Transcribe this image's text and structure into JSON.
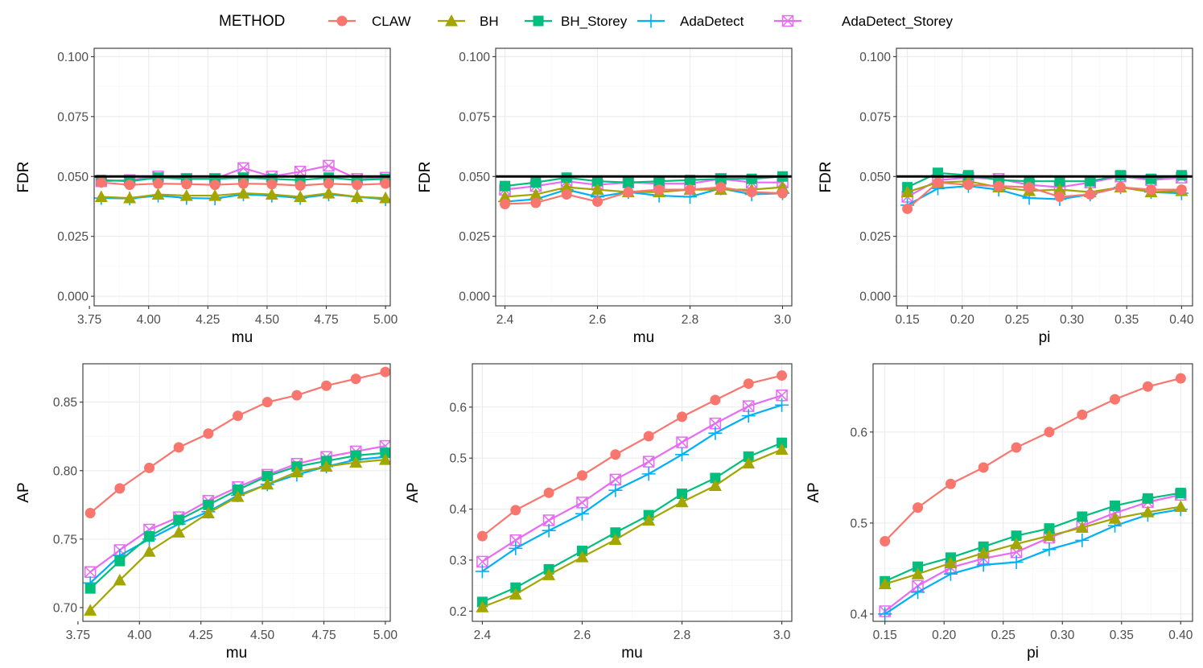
{
  "legend": {
    "title": "METHOD",
    "items": [
      {
        "name": "CLAW",
        "color": "#F8766D",
        "shape": "circle"
      },
      {
        "name": "BH",
        "color": "#A3A500",
        "shape": "triangle"
      },
      {
        "name": "BH_Storey",
        "color": "#00BF7D",
        "shape": "square"
      },
      {
        "name": "AdaDetect",
        "color": "#00B0F6",
        "shape": "plus"
      },
      {
        "name": "AdaDetect_Storey",
        "color": "#E76BF3",
        "shape": "boxx"
      }
    ]
  },
  "chart_data": [
    {
      "type": "line",
      "panel": "top-left",
      "xlabel": "mu",
      "ylabel": "FDR",
      "xlim": [
        3.77,
        5.02
      ],
      "ylim": [
        -0.004,
        0.1035
      ],
      "xticks": [
        3.75,
        4.0,
        4.25,
        4.5,
        4.75,
        5.0
      ],
      "xtick_labels": [
        "3.75",
        "4.00",
        "4.25",
        "4.50",
        "4.75",
        "5.00"
      ],
      "yticks": [
        0,
        0.025,
        0.05,
        0.075,
        0.1
      ],
      "ytick_labels": [
        "0.000",
        "0.025",
        "0.050",
        "0.075",
        "0.100"
      ],
      "hline": 0.05,
      "x": [
        3.8,
        3.92,
        4.04,
        4.16,
        4.28,
        4.4,
        4.52,
        4.64,
        4.76,
        4.88,
        5.0
      ],
      "series": [
        {
          "name": "CLAW",
          "values": [
            0.0475,
            0.0465,
            0.047,
            0.0468,
            0.0465,
            0.047,
            0.0468,
            0.0462,
            0.047,
            0.0465,
            0.047
          ]
        },
        {
          "name": "BH",
          "values": [
            0.0415,
            0.041,
            0.0425,
            0.042,
            0.042,
            0.043,
            0.0425,
            0.0415,
            0.043,
            0.0415,
            0.041
          ]
        },
        {
          "name": "BH_Storey",
          "values": [
            0.0485,
            0.048,
            0.0495,
            0.049,
            0.049,
            0.0495,
            0.049,
            0.0485,
            0.0495,
            0.0485,
            0.049
          ]
        },
        {
          "name": "AdaDetect",
          "values": [
            0.041,
            0.0408,
            0.042,
            0.041,
            0.0408,
            0.0425,
            0.042,
            0.041,
            0.0425,
            0.0415,
            0.0405
          ]
        },
        {
          "name": "AdaDetect_Storey",
          "values": [
            0.048,
            0.0485,
            0.05,
            0.049,
            0.049,
            0.0535,
            0.05,
            0.052,
            0.0545,
            0.049,
            0.0495
          ]
        }
      ]
    },
    {
      "type": "line",
      "panel": "top-middle",
      "xlabel": "mu",
      "ylabel": "FDR",
      "xlim": [
        2.38,
        3.02
      ],
      "ylim": [
        -0.004,
        0.1035
      ],
      "xticks": [
        2.4,
        2.6,
        2.8,
        3.0
      ],
      "xtick_labels": [
        "2.4",
        "2.6",
        "2.8",
        "3.0"
      ],
      "yticks": [
        0,
        0.025,
        0.05,
        0.075,
        0.1
      ],
      "ytick_labels": [
        "0.000",
        "0.025",
        "0.050",
        "0.075",
        "0.100"
      ],
      "hline": 0.05,
      "x": [
        2.4,
        2.4667,
        2.5333,
        2.6,
        2.6667,
        2.7333,
        2.8,
        2.8667,
        2.9333,
        3.0
      ],
      "series": [
        {
          "name": "CLAW",
          "values": [
            0.0385,
            0.039,
            0.0425,
            0.0395,
            0.0435,
            0.0445,
            0.0445,
            0.0455,
            0.0435,
            0.043
          ]
        },
        {
          "name": "BH",
          "values": [
            0.0415,
            0.0425,
            0.0455,
            0.0445,
            0.0435,
            0.0435,
            0.0445,
            0.0445,
            0.0445,
            0.0455
          ]
        },
        {
          "name": "BH_Storey",
          "values": [
            0.046,
            0.0475,
            0.0495,
            0.048,
            0.0475,
            0.048,
            0.0485,
            0.049,
            0.049,
            0.05
          ]
        },
        {
          "name": "AdaDetect",
          "values": [
            0.0395,
            0.0405,
            0.0445,
            0.0415,
            0.0435,
            0.042,
            0.0415,
            0.045,
            0.0425,
            0.043
          ]
        },
        {
          "name": "AdaDetect_Storey",
          "values": [
            0.0445,
            0.046,
            0.048,
            0.0465,
            0.0475,
            0.047,
            0.047,
            0.049,
            0.0475,
            0.0475
          ]
        }
      ]
    },
    {
      "type": "line",
      "panel": "top-right",
      "xlabel": "pi",
      "ylabel": "FDR",
      "xlim": [
        0.14,
        0.41
      ],
      "ylim": [
        -0.004,
        0.1035
      ],
      "xticks": [
        0.15,
        0.2,
        0.25,
        0.3,
        0.35,
        0.4
      ],
      "xtick_labels": [
        "0.15",
        "0.20",
        "0.25",
        "0.30",
        "0.35",
        "0.40"
      ],
      "yticks": [
        0,
        0.025,
        0.05,
        0.075,
        0.1
      ],
      "ytick_labels": [
        "0.000",
        "0.025",
        "0.050",
        "0.075",
        "0.100"
      ],
      "hline": 0.05,
      "x": [
        0.15,
        0.1778,
        0.2056,
        0.2333,
        0.2611,
        0.2889,
        0.3167,
        0.3444,
        0.3722,
        0.4
      ],
      "series": [
        {
          "name": "CLAW",
          "values": [
            0.0365,
            0.0475,
            0.0465,
            0.046,
            0.0455,
            0.0415,
            0.0425,
            0.0455,
            0.0445,
            0.0445
          ]
        },
        {
          "name": "BH",
          "values": [
            0.0435,
            0.0475,
            0.048,
            0.0455,
            0.044,
            0.0445,
            0.0435,
            0.0455,
            0.0435,
            0.044
          ]
        },
        {
          "name": "BH_Storey",
          "values": [
            0.0455,
            0.0515,
            0.0505,
            0.0485,
            0.048,
            0.048,
            0.048,
            0.0505,
            0.049,
            0.0505
          ]
        },
        {
          "name": "AdaDetect",
          "values": [
            0.038,
            0.045,
            0.046,
            0.0445,
            0.041,
            0.0405,
            0.0425,
            0.0455,
            0.0435,
            0.043
          ]
        },
        {
          "name": "AdaDetect_Storey",
          "values": [
            0.0415,
            0.0485,
            0.0495,
            0.049,
            0.0465,
            0.0455,
            0.0475,
            0.05,
            0.0485,
            0.0495
          ]
        }
      ]
    },
    {
      "type": "line",
      "panel": "bottom-left",
      "xlabel": "mu",
      "ylabel": "AP",
      "xlim": [
        3.77,
        5.02
      ],
      "ylim": [
        0.69,
        0.878
      ],
      "xticks": [
        3.75,
        4.0,
        4.25,
        4.5,
        4.75,
        5.0
      ],
      "xtick_labels": [
        "3.75",
        "4.00",
        "4.25",
        "4.50",
        "4.75",
        "5.00"
      ],
      "yticks": [
        0.7,
        0.75,
        0.8,
        0.85
      ],
      "ytick_labels": [
        "0.70",
        "0.75",
        "0.80",
        "0.85"
      ],
      "x": [
        3.8,
        3.92,
        4.04,
        4.16,
        4.28,
        4.4,
        4.52,
        4.64,
        4.76,
        4.88,
        5.0
      ],
      "series": [
        {
          "name": "CLAW",
          "values": [
            0.769,
            0.787,
            0.802,
            0.817,
            0.827,
            0.84,
            0.85,
            0.855,
            0.862,
            0.867,
            0.872
          ]
        },
        {
          "name": "BH",
          "values": [
            0.698,
            0.72,
            0.741,
            0.755,
            0.769,
            0.781,
            0.79,
            0.799,
            0.803,
            0.806,
            0.808
          ]
        },
        {
          "name": "BH_Storey",
          "values": [
            0.714,
            0.734,
            0.752,
            0.764,
            0.775,
            0.786,
            0.796,
            0.803,
            0.807,
            0.811,
            0.813
          ]
        },
        {
          "name": "AdaDetect",
          "values": [
            0.718,
            0.738,
            0.75,
            0.761,
            0.77,
            0.782,
            0.79,
            0.797,
            0.803,
            0.808,
            0.81
          ]
        },
        {
          "name": "AdaDetect_Storey",
          "values": [
            0.726,
            0.742,
            0.757,
            0.766,
            0.778,
            0.788,
            0.797,
            0.805,
            0.81,
            0.814,
            0.818
          ]
        }
      ]
    },
    {
      "type": "line",
      "panel": "bottom-middle",
      "xlabel": "mu",
      "ylabel": "AP",
      "xlim": [
        2.38,
        3.02
      ],
      "ylim": [
        0.18,
        0.685
      ],
      "xticks": [
        2.4,
        2.6,
        2.8,
        3.0
      ],
      "xtick_labels": [
        "2.4",
        "2.6",
        "2.8",
        "3.0"
      ],
      "yticks": [
        0.2,
        0.3,
        0.4,
        0.5,
        0.6
      ],
      "ytick_labels": [
        "0.2",
        "0.3",
        "0.4",
        "0.5",
        "0.6"
      ],
      "x": [
        2.4,
        2.4667,
        2.5333,
        2.6,
        2.6667,
        2.7333,
        2.8,
        2.8667,
        2.9333,
        3.0
      ],
      "series": [
        {
          "name": "CLAW",
          "values": [
            0.347,
            0.398,
            0.432,
            0.466,
            0.507,
            0.543,
            0.581,
            0.614,
            0.646,
            0.662
          ]
        },
        {
          "name": "BH",
          "values": [
            0.208,
            0.233,
            0.271,
            0.306,
            0.34,
            0.378,
            0.414,
            0.446,
            0.49,
            0.517
          ]
        },
        {
          "name": "BH_Storey",
          "values": [
            0.218,
            0.246,
            0.282,
            0.318,
            0.354,
            0.388,
            0.43,
            0.461,
            0.503,
            0.53
          ]
        },
        {
          "name": "AdaDetect",
          "values": [
            0.278,
            0.323,
            0.358,
            0.391,
            0.437,
            0.469,
            0.507,
            0.549,
            0.583,
            0.604
          ]
        },
        {
          "name": "AdaDetect_Storey",
          "values": [
            0.297,
            0.339,
            0.378,
            0.413,
            0.458,
            0.493,
            0.531,
            0.568,
            0.602,
            0.623
          ]
        }
      ]
    },
    {
      "type": "line",
      "panel": "bottom-right",
      "xlabel": "pi",
      "ylabel": "AP",
      "xlim": [
        0.14,
        0.41
      ],
      "ylim": [
        0.392,
        0.675
      ],
      "xticks": [
        0.15,
        0.2,
        0.25,
        0.3,
        0.35,
        0.4
      ],
      "xtick_labels": [
        "0.15",
        "0.20",
        "0.25",
        "0.30",
        "0.35",
        "0.40"
      ],
      "yticks": [
        0.4,
        0.5,
        0.6
      ],
      "ytick_labels": [
        "0.4",
        "0.5",
        "0.6"
      ],
      "x": [
        0.15,
        0.1778,
        0.2056,
        0.2333,
        0.2611,
        0.2889,
        0.3167,
        0.3444,
        0.3722,
        0.4
      ],
      "series": [
        {
          "name": "CLAW",
          "values": [
            0.48,
            0.517,
            0.543,
            0.561,
            0.583,
            0.6,
            0.619,
            0.636,
            0.65,
            0.659
          ]
        },
        {
          "name": "BH",
          "values": [
            0.433,
            0.444,
            0.456,
            0.467,
            0.477,
            0.486,
            0.495,
            0.505,
            0.512,
            0.518
          ]
        },
        {
          "name": "BH_Storey",
          "values": [
            0.436,
            0.452,
            0.462,
            0.474,
            0.486,
            0.494,
            0.507,
            0.519,
            0.527,
            0.533
          ]
        },
        {
          "name": "AdaDetect",
          "values": [
            0.4,
            0.424,
            0.444,
            0.454,
            0.457,
            0.471,
            0.481,
            0.497,
            0.509,
            0.515
          ]
        },
        {
          "name": "AdaDetect_Storey",
          "values": [
            0.403,
            0.431,
            0.451,
            0.461,
            0.468,
            0.484,
            0.497,
            0.511,
            0.523,
            0.531
          ]
        }
      ]
    }
  ]
}
